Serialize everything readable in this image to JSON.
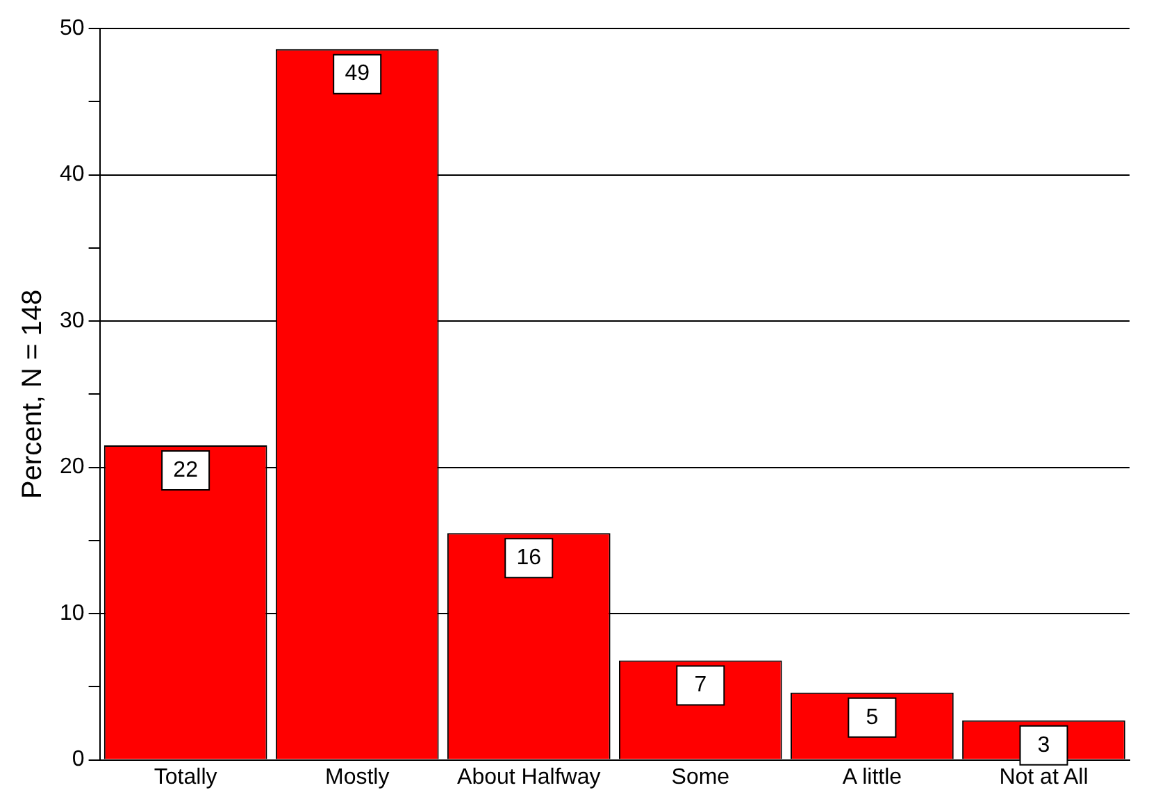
{
  "chart_data": {
    "type": "bar",
    "ylabel": "Percent, N = 148",
    "categories": [
      "Totally",
      "Mostly",
      "About Halfway",
      "Some",
      "A little",
      "Not at All"
    ],
    "values": [
      21.5,
      48.6,
      15.5,
      6.8,
      4.6,
      2.7
    ],
    "value_labels": [
      "22",
      "49",
      "16",
      "7",
      "5",
      "3"
    ],
    "color": "#ff0000",
    "ylim": [
      0,
      50
    ],
    "yticks": [
      0,
      {
        "value": 5,
        "label": null
      },
      10,
      {
        "value": 15,
        "label": null
      },
      20,
      {
        "value": 25,
        "label": null
      },
      30,
      {
        "value": 35,
        "label": null
      },
      40,
      {
        "value": 45,
        "label": null
      },
      50
    ],
    "grid": "y",
    "legend": false
  }
}
